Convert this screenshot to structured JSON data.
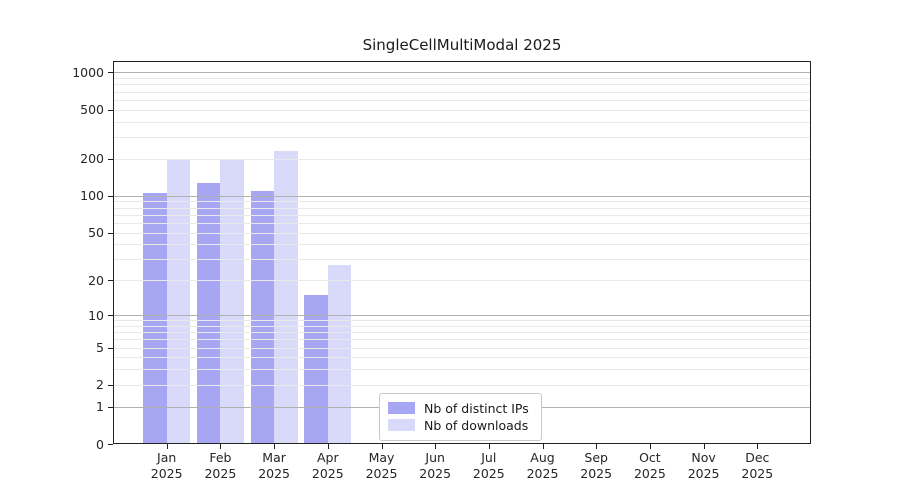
{
  "title": "SingleCellMultiModal 2025",
  "chart_data": {
    "type": "bar",
    "title": "SingleCellMultiModal 2025",
    "categories": [
      "Jan 2025",
      "Feb 2025",
      "Mar 2025",
      "Apr 2025",
      "May 2025",
      "Jun 2025",
      "Jul 2025",
      "Aug 2025",
      "Sep 2025",
      "Oct 2025",
      "Nov 2025",
      "Dec 2025"
    ],
    "series": [
      {
        "name": "Nb of distinct IPs",
        "color": "#a6a6f3",
        "values": [
          105,
          128,
          110,
          15,
          null,
          null,
          null,
          null,
          null,
          null,
          null,
          null
        ]
      },
      {
        "name": "Nb of downloads",
        "color": "#d9d9fa",
        "values": [
          200,
          200,
          230,
          27,
          null,
          null,
          null,
          null,
          null,
          null,
          null,
          null
        ]
      }
    ],
    "xlabel": "",
    "ylabel": "",
    "yscale": "log1p",
    "ylim": [
      0,
      1234
    ],
    "yticks": [
      0,
      1,
      2,
      5,
      10,
      20,
      50,
      100,
      200,
      500,
      1000
    ],
    "major_grid_values": [
      1,
      10,
      100,
      1000
    ],
    "grid": "on",
    "legend_position": "lower center inside plot"
  },
  "colors": {
    "major_grid": "#b0b0b0",
    "minor_grid": "#e9e9e9",
    "axis": "#222222",
    "text": "#262626",
    "background": "#ffffff"
  }
}
